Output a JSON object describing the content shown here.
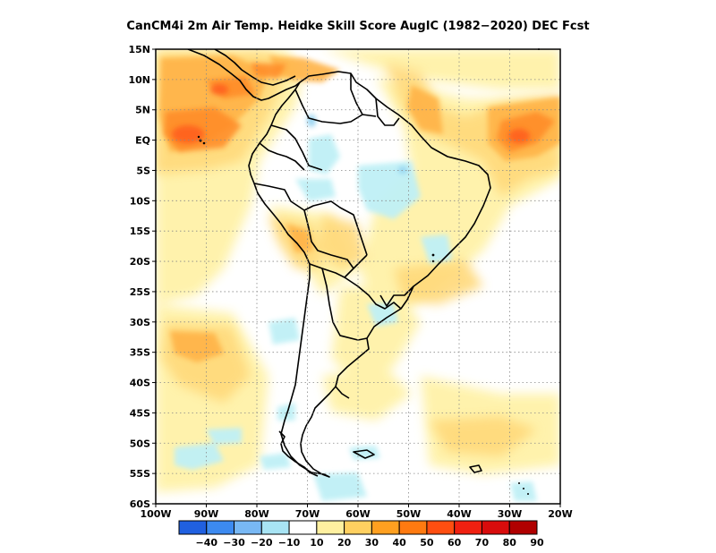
{
  "title": "CanCM4i  2m Air Temp. Heidke Skill Score AugIC (1982−2020) DEC Fcst",
  "map": {
    "lat_labels": [
      "15N",
      "10N",
      "5N",
      "EQ",
      "5S",
      "10S",
      "15S",
      "20S",
      "25S",
      "30S",
      "35S",
      "40S",
      "45S",
      "50S",
      "55S",
      "60S"
    ],
    "lon_labels": [
      "100W",
      "90W",
      "80W",
      "70W",
      "60W",
      "50W",
      "40W",
      "30W",
      "20W"
    ],
    "lat_range": [
      -60,
      15
    ],
    "lon_range": [
      -100,
      -20
    ],
    "grid": "dotted"
  },
  "colorbar": {
    "labels": [
      "−40",
      "−30",
      "−20",
      "−10",
      "10",
      "20",
      "30",
      "40",
      "50",
      "60",
      "70",
      "80",
      "90"
    ],
    "colors": [
      "#2060e0",
      "#3c8af0",
      "#78b8f4",
      "#a8e4f4",
      "#ffffff",
      "#fff0a0",
      "#ffd060",
      "#ffa020",
      "#ff7a10",
      "#ff4e10",
      "#f02010",
      "#d80c0c",
      "#b00000"
    ]
  },
  "colors": {
    "land_outline": "#000000"
  }
}
